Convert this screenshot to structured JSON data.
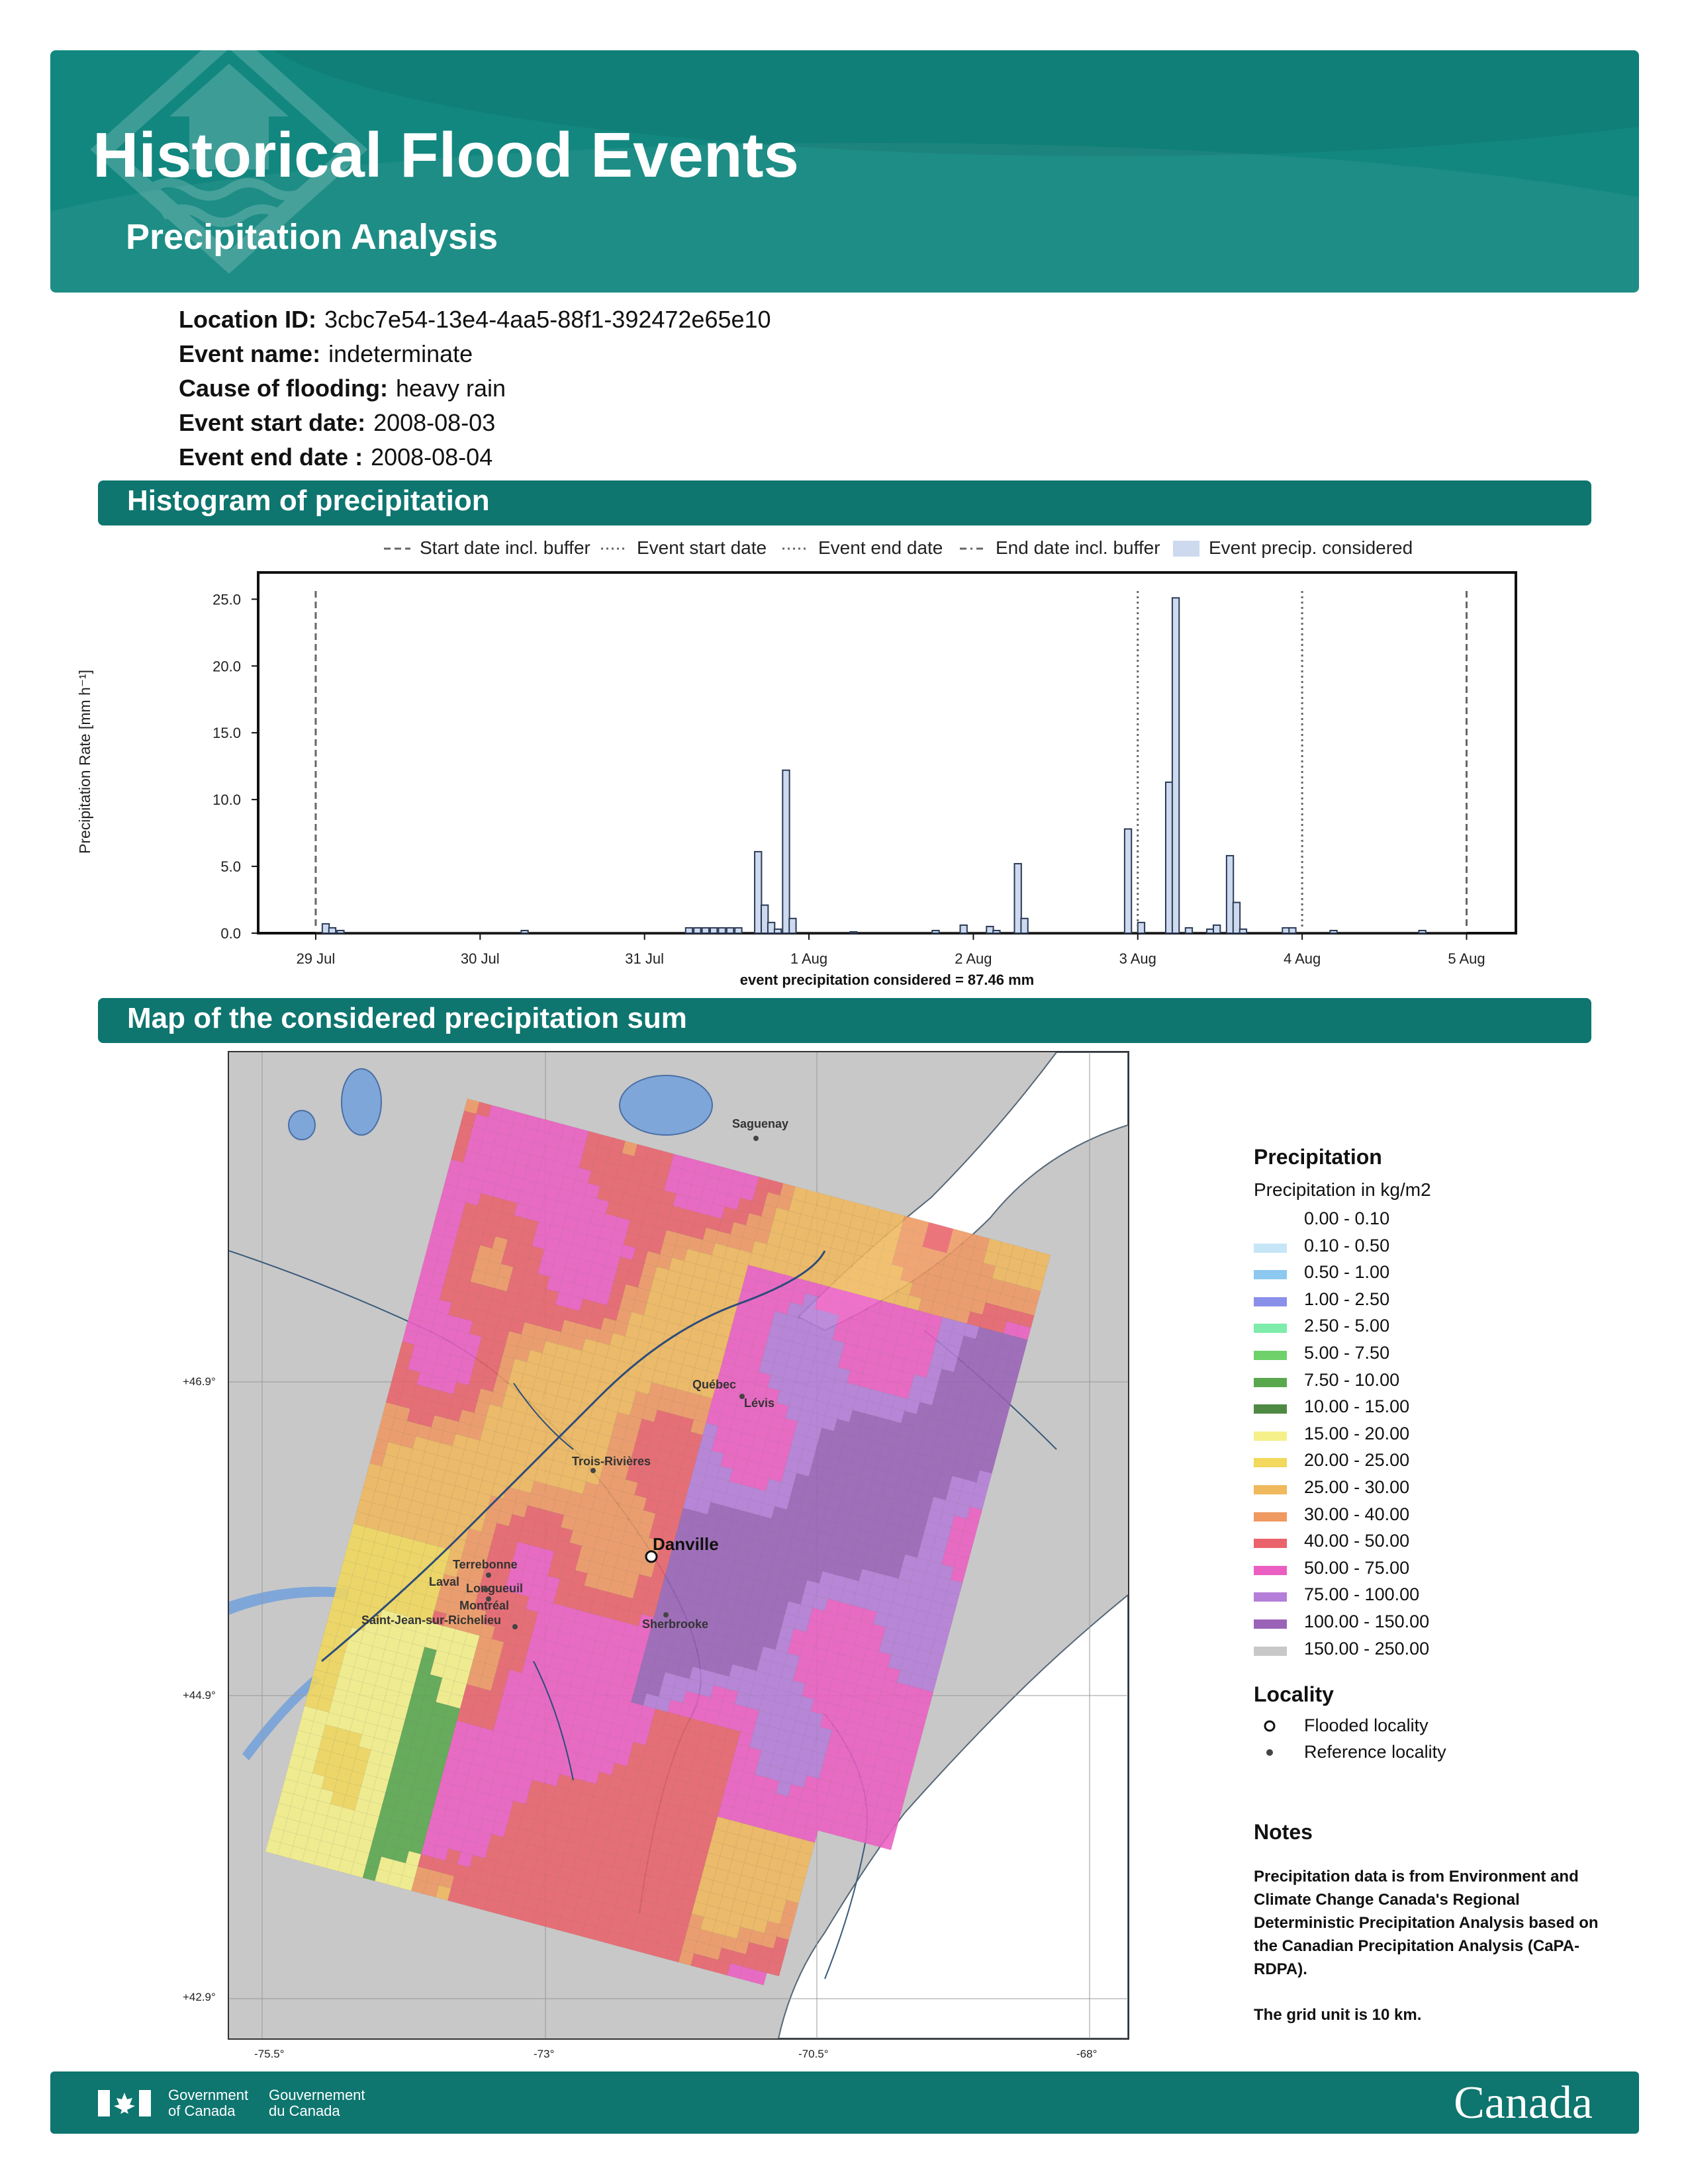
{
  "header": {
    "title": "Historical Flood Events",
    "subtitle": "Precipitation Analysis",
    "icon": "house-flood-icon"
  },
  "info": [
    {
      "key": "Location ID:",
      "value": "3cbc7e54-13e4-4aa5-88f1-392472e65e10"
    },
    {
      "key": "Event name:",
      "value": "indeterminate"
    },
    {
      "key": "Cause of flooding:",
      "value": "heavy rain"
    },
    {
      "key": "Event start date:",
      "value": "2008-08-03"
    },
    {
      "key": "Event end date :",
      "value": "2008-08-04"
    }
  ],
  "sections": {
    "histogram": "Histogram of precipitation",
    "map": "Map of the considered precipitation sum"
  },
  "chart_data": {
    "type": "bar",
    "title": "",
    "ylabel": "Precipitation Rate [mm h⁻¹]",
    "xlabel": "event precipitation considered = 87.46 mm",
    "ylim": [
      0,
      27
    ],
    "yticks": [
      "0.0",
      "5.0",
      "10.0",
      "15.0",
      "20.0",
      "25.0"
    ],
    "ytick_values": [
      0,
      5,
      10,
      15,
      20,
      25
    ],
    "xticks": [
      "29 Jul",
      "30 Jul",
      "31 Jul",
      "1 Aug",
      "2 Aug",
      "3 Aug",
      "4 Aug",
      "5 Aug"
    ],
    "xlim_days": [
      -0.35,
      7.3
    ],
    "legend": [
      "Start date incl. buffer",
      "Event start date",
      "Event end date",
      "End date incl. buffer",
      "Event precip. considered"
    ],
    "legend_position": "top",
    "markers": {
      "start_buffer": 0,
      "event_start": 5,
      "event_end": 6,
      "end_buffer": 7
    },
    "bars": [
      {
        "day": 0.04,
        "value": 0.7
      },
      {
        "day": 0.08,
        "value": 0.4
      },
      {
        "day": 0.13,
        "value": 0.2
      },
      {
        "day": 1.25,
        "value": 0.2
      },
      {
        "day": 2.25,
        "value": 0.4
      },
      {
        "day": 2.3,
        "value": 0.4
      },
      {
        "day": 2.35,
        "value": 0.4
      },
      {
        "day": 2.4,
        "value": 0.4
      },
      {
        "day": 2.45,
        "value": 0.4
      },
      {
        "day": 2.5,
        "value": 0.4
      },
      {
        "day": 2.55,
        "value": 0.4
      },
      {
        "day": 2.67,
        "value": 6.1
      },
      {
        "day": 2.71,
        "value": 2.1
      },
      {
        "day": 2.75,
        "value": 0.8
      },
      {
        "day": 2.79,
        "value": 0.3
      },
      {
        "day": 2.84,
        "value": 12.2
      },
      {
        "day": 2.88,
        "value": 1.1
      },
      {
        "day": 3.25,
        "value": 0.1
      },
      {
        "day": 3.75,
        "value": 0.2
      },
      {
        "day": 3.92,
        "value": 0.6
      },
      {
        "day": 4.08,
        "value": 0.5
      },
      {
        "day": 4.12,
        "value": 0.2
      },
      {
        "day": 4.25,
        "value": 5.2
      },
      {
        "day": 4.29,
        "value": 1.1
      },
      {
        "day": 4.92,
        "value": 7.8
      },
      {
        "day": 5.0,
        "value": 0.8
      },
      {
        "day": 5.17,
        "value": 11.3
      },
      {
        "day": 5.21,
        "value": 25.1
      },
      {
        "day": 5.29,
        "value": 0.4
      },
      {
        "day": 5.42,
        "value": 0.3
      },
      {
        "day": 5.46,
        "value": 0.6
      },
      {
        "day": 5.54,
        "value": 5.8
      },
      {
        "day": 5.58,
        "value": 2.3
      },
      {
        "day": 5.62,
        "value": 0.3
      },
      {
        "day": 5.88,
        "value": 0.4
      },
      {
        "day": 5.92,
        "value": 0.4
      },
      {
        "day": 6.17,
        "value": 0.2
      },
      {
        "day": 6.71,
        "value": 0.2
      }
    ]
  },
  "map": {
    "lat_labels": [
      "+46.9°",
      "+44.9°",
      "+42.9°"
    ],
    "lon_labels": [
      "-75.5°",
      "-73°",
      "-70.5°",
      "-68°"
    ],
    "cities": [
      {
        "name": "Saguenay"
      },
      {
        "name": "Québec"
      },
      {
        "name": "Lévis"
      },
      {
        "name": "Trois-Rivières"
      },
      {
        "name": "Danville"
      },
      {
        "name": "Terrebonne"
      },
      {
        "name": "Laval"
      },
      {
        "name": "Longueuil"
      },
      {
        "name": "Montréal"
      },
      {
        "name": "Saint-Jean-sur-Richelieu"
      },
      {
        "name": "Sherbrooke"
      }
    ]
  },
  "legend": {
    "title": "Precipitation",
    "subtitle": "Precipitation in kg/m2",
    "items": [
      {
        "label": "0.00 - 0.10",
        "color": "#ffffff"
      },
      {
        "label": "0.10 - 0.50",
        "color": "#c6e6f7"
      },
      {
        "label": "0.50 - 1.00",
        "color": "#8cc8f0"
      },
      {
        "label": "1.00 - 2.50",
        "color": "#8a90ea"
      },
      {
        "label": "2.50 - 5.00",
        "color": "#7eecaa"
      },
      {
        "label": "5.00 - 7.50",
        "color": "#6fd16a"
      },
      {
        "label": "7.50 - 10.00",
        "color": "#5aa84e"
      },
      {
        "label": "10.00 - 15.00",
        "color": "#4f8a45"
      },
      {
        "label": "15.00 - 20.00",
        "color": "#f5f08a"
      },
      {
        "label": "20.00 - 25.00",
        "color": "#f2d85c"
      },
      {
        "label": "25.00 - 30.00",
        "color": "#f0b95e"
      },
      {
        "label": "30.00 - 40.00",
        "color": "#ef9963"
      },
      {
        "label": "40.00 - 50.00",
        "color": "#ea636b"
      },
      {
        "label": "50.00 - 75.00",
        "color": "#ec5fc2"
      },
      {
        "label": "75.00 - 100.00",
        "color": "#b57ed8"
      },
      {
        "label": "100.00 - 150.00",
        "color": "#9a63b8"
      },
      {
        "label": "150.00 - 250.00",
        "color": "#c8c8c8"
      }
    ],
    "locality_title": "Locality",
    "flooded": "Flooded locality",
    "reference": "Reference locality"
  },
  "notes": {
    "title": "Notes",
    "text": "Precipitation data is from Environment and Climate Change Canada's Regional Deterministic Precipitation Analysis based on the Canadian Precipitation Analysis (CaPA-RDPA).",
    "grid": "The grid unit is 10 km."
  },
  "footer": {
    "gov_en": "Government of Canada",
    "gov_fr": "Gouvernement du Canada",
    "wordmark": "Canada"
  }
}
